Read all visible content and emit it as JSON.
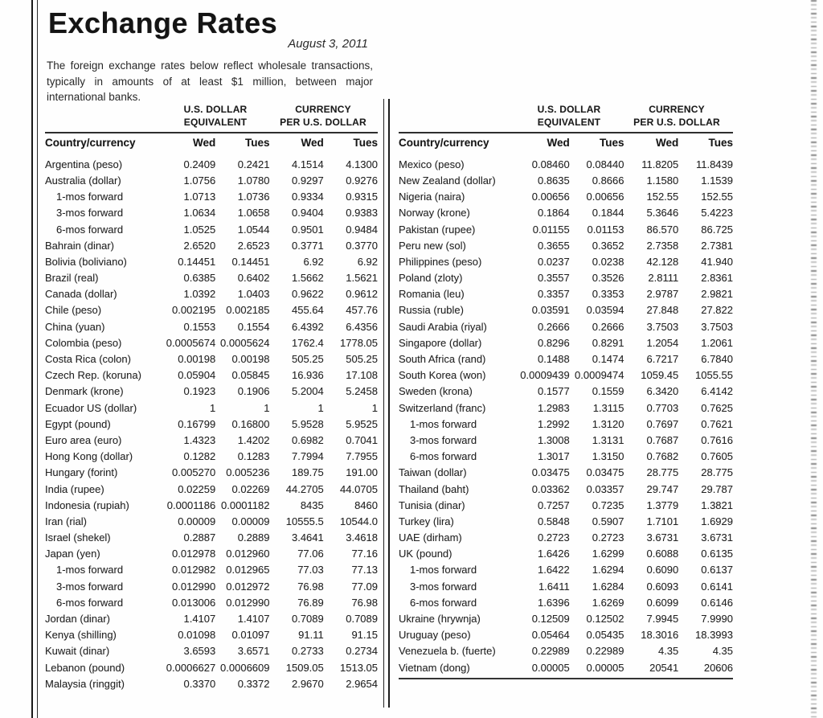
{
  "page": {
    "title": "Exchange Rates",
    "date": "August 3, 2011",
    "description": "The foreign exchange rates below reflect wholesale transactions, typically in amounts of at least $1 million, between major international banks."
  },
  "table_headers": {
    "group_usd_equivalent": "U.S. DOLLAR EQUIVALENT",
    "group_currency_line1": "CURRENCY",
    "group_currency_line2": "PER U.S. DOLLAR",
    "country": "Country/currency",
    "wed": "Wed",
    "tues": "Tues"
  },
  "tables": {
    "left": {
      "rows": [
        {
          "label": "Argentina (peso)",
          "indent": false,
          "values": [
            "0.2409",
            "0.2421",
            "4.1514",
            "4.1300"
          ]
        },
        {
          "label": "Australia (dollar)",
          "indent": false,
          "values": [
            "1.0756",
            "1.0780",
            "0.9297",
            "0.9276"
          ]
        },
        {
          "label": "1-mos forward",
          "indent": true,
          "values": [
            "1.0713",
            "1.0736",
            "0.9334",
            "0.9315"
          ]
        },
        {
          "label": "3-mos forward",
          "indent": true,
          "values": [
            "1.0634",
            "1.0658",
            "0.9404",
            "0.9383"
          ]
        },
        {
          "label": "6-mos forward",
          "indent": true,
          "values": [
            "1.0525",
            "1.0544",
            "0.9501",
            "0.9484"
          ]
        },
        {
          "label": "Bahrain (dinar)",
          "indent": false,
          "values": [
            "2.6520",
            "2.6523",
            "0.3771",
            "0.3770"
          ]
        },
        {
          "label": "Bolivia (boliviano)",
          "indent": false,
          "values": [
            "0.14451",
            "0.14451",
            "6.92",
            "6.92"
          ]
        },
        {
          "label": "Brazil (real)",
          "indent": false,
          "values": [
            "0.6385",
            "0.6402",
            "1.5662",
            "1.5621"
          ]
        },
        {
          "label": "Canada (dollar)",
          "indent": false,
          "values": [
            "1.0392",
            "1.0403",
            "0.9622",
            "0.9612"
          ]
        },
        {
          "label": "Chile (peso)",
          "indent": false,
          "values": [
            "0.002195",
            "0.002185",
            "455.64",
            "457.76"
          ]
        },
        {
          "label": "China (yuan)",
          "indent": false,
          "values": [
            "0.1553",
            "0.1554",
            "6.4392",
            "6.4356"
          ]
        },
        {
          "label": "Colombia (peso)",
          "indent": false,
          "values": [
            "0.0005674",
            "0.0005624",
            "1762.4",
            "1778.05"
          ]
        },
        {
          "label": "Costa Rica (colon)",
          "indent": false,
          "values": [
            "0.00198",
            "0.00198",
            "505.25",
            "505.25"
          ]
        },
        {
          "label": "Czech Rep. (koruna)",
          "indent": false,
          "values": [
            "0.05904",
            "0.05845",
            "16.936",
            "17.108"
          ]
        },
        {
          "label": "Denmark (krone)",
          "indent": false,
          "values": [
            "0.1923",
            "0.1906",
            "5.2004",
            "5.2458"
          ]
        },
        {
          "label": "Ecuador US (dollar)",
          "indent": false,
          "values": [
            "1",
            "1",
            "1",
            "1"
          ]
        },
        {
          "label": "Egypt (pound)",
          "indent": false,
          "values": [
            "0.16799",
            "0.16800",
            "5.9528",
            "5.9525"
          ]
        },
        {
          "label": "Euro area (euro)",
          "indent": false,
          "values": [
            "1.4323",
            "1.4202",
            "0.6982",
            "0.7041"
          ]
        },
        {
          "label": "Hong Kong (dollar)",
          "indent": false,
          "values": [
            "0.1282",
            "0.1283",
            "7.7994",
            "7.7955"
          ]
        },
        {
          "label": "Hungary (forint)",
          "indent": false,
          "values": [
            "0.005270",
            "0.005236",
            "189.75",
            "191.00"
          ]
        },
        {
          "label": "India (rupee)",
          "indent": false,
          "values": [
            "0.02259",
            "0.02269",
            "44.2705",
            "44.0705"
          ]
        },
        {
          "label": "Indonesia (rupiah)",
          "indent": false,
          "values": [
            "0.0001186",
            "0.0001182",
            "8435",
            "8460"
          ]
        },
        {
          "label": "Iran (rial)",
          "indent": false,
          "values": [
            "0.00009",
            "0.00009",
            "10555.5",
            "10544.0"
          ]
        },
        {
          "label": "Israel (shekel)",
          "indent": false,
          "values": [
            "0.2887",
            "0.2889",
            "3.4641",
            "3.4618"
          ]
        },
        {
          "label": "Japan (yen)",
          "indent": false,
          "values": [
            "0.012978",
            "0.012960",
            "77.06",
            "77.16"
          ]
        },
        {
          "label": "1-mos forward",
          "indent": true,
          "values": [
            "0.012982",
            "0.012965",
            "77.03",
            "77.13"
          ]
        },
        {
          "label": "3-mos forward",
          "indent": true,
          "values": [
            "0.012990",
            "0.012972",
            "76.98",
            "77.09"
          ]
        },
        {
          "label": "6-mos forward",
          "indent": true,
          "values": [
            "0.013006",
            "0.012990",
            "76.89",
            "76.98"
          ]
        },
        {
          "label": "Jordan (dinar)",
          "indent": false,
          "values": [
            "1.4107",
            "1.4107",
            "0.7089",
            "0.7089"
          ]
        },
        {
          "label": "Kenya (shilling)",
          "indent": false,
          "values": [
            "0.01098",
            "0.01097",
            "91.11",
            "91.15"
          ]
        },
        {
          "label": "Kuwait (dinar)",
          "indent": false,
          "values": [
            "3.6593",
            "3.6571",
            "0.2733",
            "0.2734"
          ]
        },
        {
          "label": "Lebanon (pound)",
          "indent": false,
          "values": [
            "0.0006627",
            "0.0006609",
            "1509.05",
            "1513.05"
          ]
        },
        {
          "label": "Malaysia (ringgit)",
          "indent": false,
          "values": [
            "0.3370",
            "0.3372",
            "2.9670",
            "2.9654"
          ]
        }
      ]
    },
    "right": {
      "rows": [
        {
          "label": "Mexico (peso)",
          "indent": false,
          "values": [
            "0.08460",
            "0.08440",
            "11.8205",
            "11.8439"
          ]
        },
        {
          "label": "New Zealand (dollar)",
          "indent": false,
          "values": [
            "0.8635",
            "0.8666",
            "1.1580",
            "1.1539"
          ]
        },
        {
          "label": "Nigeria (naira)",
          "indent": false,
          "values": [
            "0.00656",
            "0.00656",
            "152.55",
            "152.55"
          ]
        },
        {
          "label": "Norway (krone)",
          "indent": false,
          "values": [
            "0.1864",
            "0.1844",
            "5.3646",
            "5.4223"
          ]
        },
        {
          "label": "Pakistan (rupee)",
          "indent": false,
          "values": [
            "0.01155",
            "0.01153",
            "86.570",
            "86.725"
          ]
        },
        {
          "label": "Peru new (sol)",
          "indent": false,
          "values": [
            "0.3655",
            "0.3652",
            "2.7358",
            "2.7381"
          ]
        },
        {
          "label": "Philippines (peso)",
          "indent": false,
          "values": [
            "0.0237",
            "0.0238",
            "42.128",
            "41.940"
          ]
        },
        {
          "label": "Poland (zloty)",
          "indent": false,
          "values": [
            "0.3557",
            "0.3526",
            "2.8111",
            "2.8361"
          ]
        },
        {
          "label": "Romania (leu)",
          "indent": false,
          "values": [
            "0.3357",
            "0.3353",
            "2.9787",
            "2.9821"
          ]
        },
        {
          "label": "Russia (ruble)",
          "indent": false,
          "values": [
            "0.03591",
            "0.03594",
            "27.848",
            "27.822"
          ]
        },
        {
          "label": "Saudi Arabia (riyal)",
          "indent": false,
          "values": [
            "0.2666",
            "0.2666",
            "3.7503",
            "3.7503"
          ]
        },
        {
          "label": "Singapore (dollar)",
          "indent": false,
          "values": [
            "0.8296",
            "0.8291",
            "1.2054",
            "1.2061"
          ]
        },
        {
          "label": "South Africa (rand)",
          "indent": false,
          "values": [
            "0.1488",
            "0.1474",
            "6.7217",
            "6.7840"
          ]
        },
        {
          "label": "South Korea (won)",
          "indent": false,
          "values": [
            "0.0009439",
            "0.0009474",
            "1059.45",
            "1055.55"
          ]
        },
        {
          "label": "Sweden (krona)",
          "indent": false,
          "values": [
            "0.1577",
            "0.1559",
            "6.3420",
            "6.4142"
          ]
        },
        {
          "label": "Switzerland (franc)",
          "indent": false,
          "values": [
            "1.2983",
            "1.3115",
            "0.7703",
            "0.7625"
          ]
        },
        {
          "label": "1-mos forward",
          "indent": true,
          "values": [
            "1.2992",
            "1.3120",
            "0.7697",
            "0.7621"
          ]
        },
        {
          "label": "3-mos forward",
          "indent": true,
          "values": [
            "1.3008",
            "1.3131",
            "0.7687",
            "0.7616"
          ]
        },
        {
          "label": "6-mos forward",
          "indent": true,
          "values": [
            "1.3017",
            "1.3150",
            "0.7682",
            "0.7605"
          ]
        },
        {
          "label": "Taiwan (dollar)",
          "indent": false,
          "values": [
            "0.03475",
            "0.03475",
            "28.775",
            "28.775"
          ]
        },
        {
          "label": "Thailand (baht)",
          "indent": false,
          "values": [
            "0.03362",
            "0.03357",
            "29.747",
            "29.787"
          ]
        },
        {
          "label": "Tunisia (dinar)",
          "indent": false,
          "values": [
            "0.7257",
            "0.7235",
            "1.3779",
            "1.3821"
          ]
        },
        {
          "label": "Turkey (lira)",
          "indent": false,
          "values": [
            "0.5848",
            "0.5907",
            "1.7101",
            "1.6929"
          ]
        },
        {
          "label": "UAE (dirham)",
          "indent": false,
          "values": [
            "0.2723",
            "0.2723",
            "3.6731",
            "3.6731"
          ]
        },
        {
          "label": "UK (pound)",
          "indent": false,
          "values": [
            "1.6426",
            "1.6299",
            "0.6088",
            "0.6135"
          ]
        },
        {
          "label": "1-mos forward",
          "indent": true,
          "values": [
            "1.6422",
            "1.6294",
            "0.6090",
            "0.6137"
          ]
        },
        {
          "label": "3-mos forward",
          "indent": true,
          "values": [
            "1.6411",
            "1.6284",
            "0.6093",
            "0.6141"
          ]
        },
        {
          "label": "6-mos forward",
          "indent": true,
          "values": [
            "1.6396",
            "1.6269",
            "0.6099",
            "0.6146"
          ]
        },
        {
          "label": "Ukraine (hrywnja)",
          "indent": false,
          "values": [
            "0.12509",
            "0.12502",
            "7.9945",
            "7.9990"
          ]
        },
        {
          "label": "Uruguay (peso)",
          "indent": false,
          "values": [
            "0.05464",
            "0.05435",
            "18.3016",
            "18.3993"
          ]
        },
        {
          "label": "Venezuela b. (fuerte)",
          "indent": false,
          "values": [
            "0.22989",
            "0.22989",
            "4.35",
            "4.35"
          ]
        },
        {
          "label": "Vietnam (dong)",
          "indent": false,
          "values": [
            "0.00005",
            "0.00005",
            "20541",
            "20606"
          ]
        }
      ]
    }
  }
}
